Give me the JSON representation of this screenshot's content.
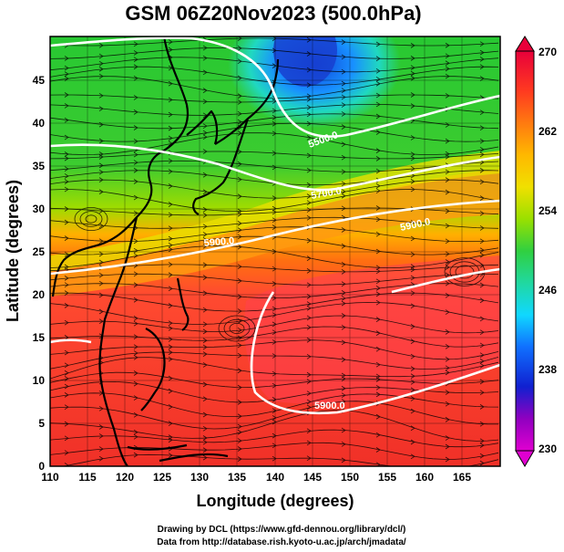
{
  "title": "GSM 06Z20Nov2023 (500.0hPa)",
  "xlabel": "Longitude (degrees)",
  "ylabel": "Latitude  (degrees)",
  "x_ticks": [
    "110",
    "115",
    "120",
    "125",
    "130",
    "135",
    "140",
    "145",
    "150",
    "155",
    "160",
    "165"
  ],
  "y_ticks": [
    "0",
    "5",
    "10",
    "15",
    "20",
    "25",
    "30",
    "35",
    "40",
    "45"
  ],
  "colorbar": {
    "ticks": [
      "270",
      "262",
      "254",
      "246",
      "238",
      "230"
    ],
    "colors": [
      "#e8003a",
      "#ff3a20",
      "#ff7a10",
      "#ffb800",
      "#f0e000",
      "#9ae000",
      "#30d040",
      "#20d8a0",
      "#10d8ff",
      "#1070ff",
      "#1020d0",
      "#9000c0",
      "#e000d0"
    ]
  },
  "contour_labels": [
    "5900.0",
    "5900.0",
    "5900.0",
    "5700.0",
    "5500.0"
  ],
  "credits": {
    "line1": "Drawing by DCL (https://www.gfd-dennou.org/library/dcl/)",
    "line2": "Data from http://database.rish.kyoto-u.ac.jp/arch/jmadata/"
  },
  "chart_data": {
    "type": "heatmap",
    "xlim": [
      110,
      170
    ],
    "ylim": [
      0,
      50
    ],
    "colorbar_range": [
      230,
      270
    ],
    "contour_levels": [
      5500,
      5700,
      5900
    ]
  }
}
